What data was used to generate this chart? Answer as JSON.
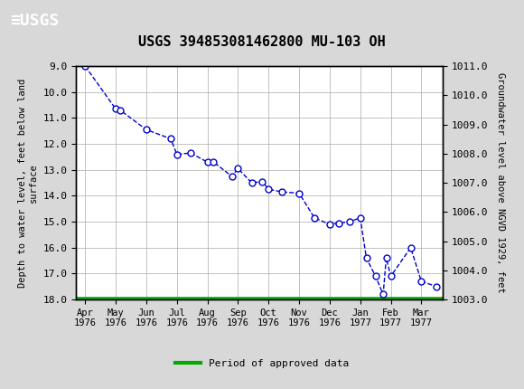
{
  "title": "USGS 394853081462800 MU-103 OH",
  "xlabel_months": [
    "Apr\n1976",
    "May\n1976",
    "Jun\n1976",
    "Jul\n1976",
    "Aug\n1976",
    "Sep\n1976",
    "Oct\n1976",
    "Nov\n1976",
    "Dec\n1976",
    "Jan\n1977",
    "Feb\n1977",
    "Mar\n1977"
  ],
  "x_pts": [
    0.0,
    1.0,
    1.15,
    2.0,
    2.8,
    3.0,
    3.45,
    4.0,
    4.2,
    4.8,
    5.0,
    5.45,
    5.8,
    6.0,
    6.45,
    7.0,
    7.5,
    8.0,
    8.3,
    8.65,
    9.0,
    9.2,
    9.5,
    9.75,
    9.85,
    10.0,
    10.65,
    11.0,
    11.5
  ],
  "y_pts": [
    9.0,
    10.65,
    10.7,
    11.45,
    11.8,
    12.4,
    12.35,
    12.7,
    12.7,
    13.25,
    12.95,
    13.5,
    13.45,
    13.75,
    13.85,
    13.9,
    14.85,
    15.1,
    15.05,
    15.0,
    14.85,
    16.4,
    17.1,
    17.8,
    16.4,
    17.1,
    16.0,
    17.3,
    17.5
  ],
  "ylim_left": [
    18.0,
    9.0
  ],
  "ylim_right": [
    1003.0,
    1011.0
  ],
  "yticks_left": [
    9.0,
    10.0,
    11.0,
    12.0,
    13.0,
    14.0,
    15.0,
    16.0,
    17.0,
    18.0
  ],
  "yticks_right": [
    1003.0,
    1004.0,
    1005.0,
    1006.0,
    1007.0,
    1008.0,
    1009.0,
    1010.0,
    1011.0
  ],
  "ylabel_left": "Depth to water level, feet below land\nsurface",
  "ylabel_right": "Groundwater level above NGVD 1929, feet",
  "line_color": "#0000CC",
  "marker_color": "#0000CC",
  "legend_line_color": "#00AA00",
  "legend_label": "Period of approved data",
  "header_color": "#1a6e3c",
  "bg_color": "#d8d8d8",
  "plot_bg": "#ffffff",
  "grid_color": "#aaaaaa",
  "xlim": [
    -0.3,
    11.7
  ]
}
